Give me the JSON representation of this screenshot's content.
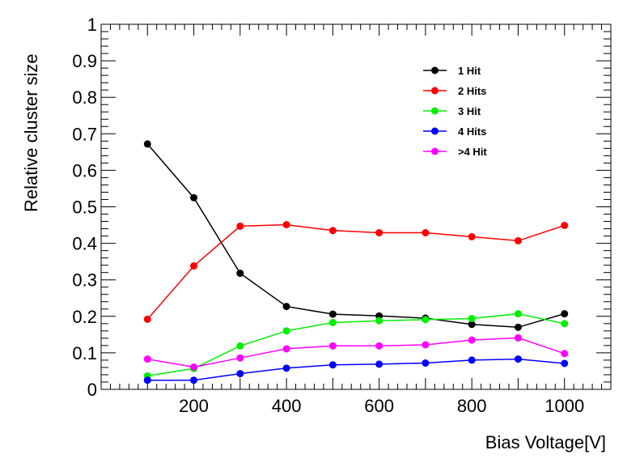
{
  "chart_data": {
    "type": "line",
    "xlabel": "Bias Voltage[V]",
    "ylabel": "Relative cluster size",
    "xlim": [
      0,
      1100
    ],
    "ylim": [
      0,
      1
    ],
    "xticks": [
      200,
      400,
      600,
      800,
      1000
    ],
    "yticks": [
      0,
      0.1,
      0.2,
      0.3,
      0.4,
      0.5,
      0.6,
      0.7,
      0.8,
      0.9,
      1
    ],
    "ytick_labels": [
      "0",
      "0.1",
      "0.2",
      "0.3",
      "0.4",
      "0.5",
      "0.6",
      "0.7",
      "0.8",
      "0.9",
      "1"
    ],
    "grid": false,
    "legend_position": "top-right",
    "x": [
      100,
      200,
      300,
      400,
      500,
      600,
      700,
      800,
      900,
      1000
    ],
    "series": [
      {
        "name": "1 Hit",
        "color": "#000000",
        "values": [
          0.672,
          0.525,
          0.318,
          0.227,
          0.206,
          0.201,
          0.195,
          0.178,
          0.17,
          0.207
        ]
      },
      {
        "name": "2 Hits",
        "color": "#ff0000",
        "values": [
          0.192,
          0.338,
          0.447,
          0.451,
          0.435,
          0.429,
          0.429,
          0.418,
          0.407,
          0.449
        ]
      },
      {
        "name": "3 Hit",
        "color": "#00ee00",
        "values": [
          0.037,
          0.057,
          0.119,
          0.16,
          0.183,
          0.188,
          0.191,
          0.194,
          0.207,
          0.18
        ]
      },
      {
        "name": "4 Hits",
        "color": "#0000ff",
        "values": [
          0.025,
          0.025,
          0.043,
          0.058,
          0.067,
          0.069,
          0.072,
          0.08,
          0.083,
          0.071
        ]
      },
      {
        "name": ">4 Hit",
        "color": "#ff00ff",
        "values": [
          0.083,
          0.061,
          0.086,
          0.111,
          0.119,
          0.119,
          0.122,
          0.135,
          0.141,
          0.098
        ]
      }
    ]
  }
}
